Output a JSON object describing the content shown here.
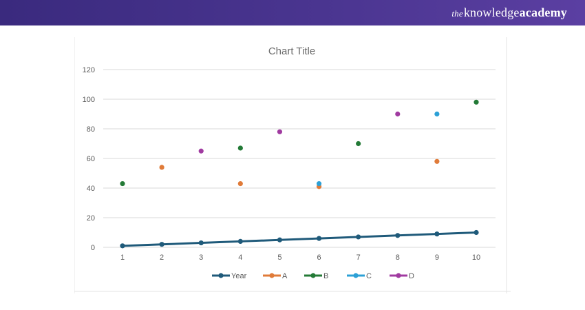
{
  "header": {
    "brand_prefix": "the",
    "brand_main": "knowledge",
    "brand_bold": "academy",
    "background_color": "#4a3590"
  },
  "chart_data": {
    "type": "line",
    "title": "Chart Title",
    "xlabel": "",
    "ylabel": "",
    "ylim": [
      0,
      120
    ],
    "yticks": [
      0,
      20,
      40,
      60,
      80,
      100,
      120
    ],
    "categories": [
      1,
      2,
      3,
      4,
      5,
      6,
      7,
      8,
      9,
      10
    ],
    "grid": true,
    "legend_position": "bottom",
    "series": [
      {
        "name": "Year",
        "color": "#1f5a7a",
        "style": "line",
        "points": [
          [
            1,
            1
          ],
          [
            2,
            2
          ],
          [
            3,
            3
          ],
          [
            4,
            4
          ],
          [
            5,
            5
          ],
          [
            6,
            6
          ],
          [
            7,
            7
          ],
          [
            8,
            8
          ],
          [
            9,
            9
          ],
          [
            10,
            10
          ]
        ]
      },
      {
        "name": "A",
        "color": "#e07b39",
        "style": "marker",
        "points": [
          [
            2,
            54
          ],
          [
            4,
            43
          ],
          [
            6,
            41
          ],
          [
            9,
            58
          ]
        ]
      },
      {
        "name": "B",
        "color": "#237a36",
        "style": "marker",
        "points": [
          [
            1,
            43
          ],
          [
            4,
            67
          ],
          [
            7,
            70
          ],
          [
            10,
            98
          ]
        ]
      },
      {
        "name": "C",
        "color": "#2ca0d6",
        "style": "marker",
        "points": [
          [
            6,
            43
          ],
          [
            9,
            90
          ]
        ]
      },
      {
        "name": "D",
        "color": "#a03aa0",
        "style": "marker",
        "points": [
          [
            3,
            65
          ],
          [
            5,
            78
          ],
          [
            8,
            90
          ]
        ]
      }
    ]
  }
}
